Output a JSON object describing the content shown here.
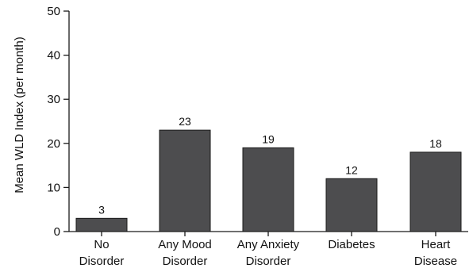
{
  "chart_data": {
    "type": "bar",
    "title": "",
    "xlabel": "",
    "ylabel": "Mean WLD Index (per month)",
    "ylim": [
      0,
      50
    ],
    "yticks": [
      0,
      10,
      20,
      30,
      40,
      50
    ],
    "categories": [
      [
        "No",
        "Disorder"
      ],
      [
        "Any Mood",
        "Disorder"
      ],
      [
        "Any Anxiety",
        "Disorder"
      ],
      [
        "Diabetes"
      ],
      [
        "Heart",
        "Disease"
      ]
    ],
    "values": [
      3,
      23,
      19,
      12,
      18
    ],
    "data_labels": [
      "3",
      "23",
      "19",
      "12",
      "18"
    ],
    "grid": false,
    "legend": "none",
    "colors": {
      "bar_fill": "#4d4d4f",
      "bar_stroke": "#1a1a1a",
      "axis": "#1a1a1a"
    }
  }
}
